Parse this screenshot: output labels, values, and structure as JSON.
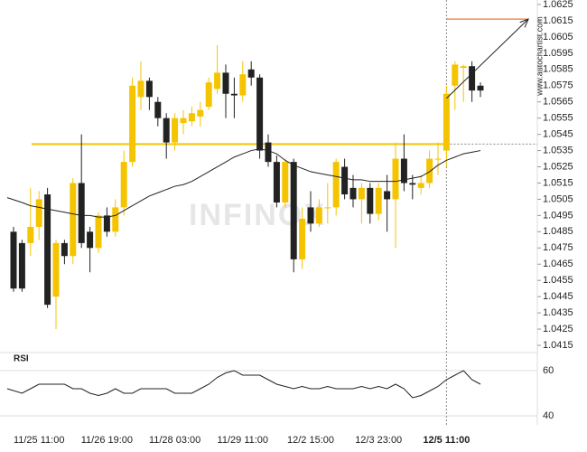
{
  "chart_data": {
    "type": "candlestick",
    "watermark": "INFINOX",
    "source": "www.autochartist.com",
    "categories": [
      null,
      null,
      null,
      "11/25 11:00",
      null,
      null,
      null,
      null,
      null,
      null,
      null,
      "11/26 19:00",
      null,
      null,
      null,
      null,
      null,
      null,
      null,
      "11/28 03:00",
      null,
      null,
      null,
      null,
      null,
      null,
      null,
      "11/29 11:00",
      null,
      null,
      null,
      null,
      null,
      null,
      null,
      "12/2 15:00",
      null,
      null,
      null,
      null,
      null,
      null,
      null,
      "12/3 23:00",
      null,
      null,
      null,
      null,
      null,
      null,
      null,
      "12/5 11:00",
      null,
      null,
      null,
      null
    ],
    "open": [
      1.0485,
      1.0478,
      1.0478,
      1.0488,
      1.0508,
      1.0445,
      1.0478,
      1.047,
      1.0515,
      1.0485,
      1.0475,
      1.0495,
      1.0485,
      1.05,
      1.0528,
      1.0568,
      1.0578,
      1.0565,
      1.0555,
      1.054,
      1.0552,
      1.0553,
      1.0556,
      1.0562,
      1.0573,
      1.0583,
      1.057,
      1.0569,
      1.0585,
      1.058,
      1.054,
      1.0528,
      1.0503,
      1.0528,
      1.0468,
      1.05,
      1.049,
      1.05,
      1.05,
      1.0525,
      1.0512,
      1.0505,
      1.0512,
      1.0496,
      1.051,
      1.0505,
      1.053,
      1.0515,
      1.0512,
      1.0515,
      1.053,
      1.0535,
      1.0575,
      1.0586,
      1.0587,
      1.0575
    ],
    "high": [
      1.0488,
      1.048,
      1.0512,
      1.051,
      1.0512,
      1.048,
      1.048,
      1.0518,
      1.0545,
      1.0488,
      1.0497,
      1.05,
      1.0505,
      1.0535,
      1.058,
      1.059,
      1.058,
      1.0568,
      1.0558,
      1.0558,
      1.056,
      1.0562,
      1.0565,
      1.058,
      1.06,
      1.0588,
      1.058,
      1.059,
      1.059,
      1.0582,
      1.0545,
      1.0532,
      1.053,
      1.053,
      1.05,
      1.051,
      1.0505,
      1.0515,
      1.053,
      1.053,
      1.052,
      1.0515,
      1.0515,
      1.0515,
      1.052,
      1.054,
      1.0545,
      1.052,
      1.052,
      1.0535,
      1.054,
      1.0575,
      1.059,
      1.0588,
      1.059,
      1.0577
    ],
    "low": [
      1.0448,
      1.0448,
      1.047,
      1.048,
      1.0438,
      1.0425,
      1.0465,
      1.0465,
      1.0475,
      1.046,
      1.0472,
      1.0482,
      1.0482,
      1.0495,
      1.0525,
      1.056,
      1.056,
      1.055,
      1.053,
      1.0535,
      1.0545,
      1.055,
      1.055,
      1.056,
      1.057,
      1.0555,
      1.0555,
      1.0565,
      1.0575,
      1.053,
      1.0525,
      1.05,
      1.05,
      1.046,
      1.0462,
      1.0485,
      1.0488,
      1.049,
      1.0495,
      1.0505,
      1.05,
      1.049,
      1.049,
      1.0492,
      1.0485,
      1.0475,
      1.051,
      1.0505,
      1.0508,
      1.0512,
      1.052,
      1.0525,
      1.056,
      1.0565,
      1.0565,
      1.0568
    ],
    "close": [
      1.045,
      1.045,
      1.0488,
      1.0505,
      1.044,
      1.0478,
      1.047,
      1.0515,
      1.0478,
      1.0475,
      1.0495,
      1.0485,
      1.05,
      1.0528,
      1.0575,
      1.0578,
      1.0568,
      1.0555,
      1.054,
      1.0555,
      1.0555,
      1.0558,
      1.056,
      1.0577,
      1.0583,
      1.057,
      1.0569,
      1.0582,
      1.058,
      1.0535,
      1.0528,
      1.0503,
      1.0528,
      1.0468,
      1.0493,
      1.049,
      1.05,
      1.05,
      1.0528,
      1.0508,
      1.0505,
      1.0512,
      1.0496,
      1.0512,
      1.0505,
      1.053,
      1.0515,
      1.0514,
      1.0515,
      1.053,
      1.053,
      1.057,
      1.0588,
      1.0587,
      1.0572,
      1.0572
    ],
    "up_color": "#f5c400",
    "down_color": "#222222",
    "moving_average": {
      "color": "#222222",
      "values": [
        1.0506,
        1.0503,
        1.0501,
        1.05,
        1.0499,
        1.0498,
        1.0497,
        1.0496,
        1.0495,
        1.0495,
        1.0494,
        1.0494,
        1.0495,
        1.0498,
        1.0501,
        1.0504,
        1.0507,
        1.0509,
        1.0511,
        1.0513,
        1.0514,
        1.0516,
        1.0519,
        1.0522,
        1.0525,
        1.0528,
        1.0531,
        1.0533,
        1.0535,
        1.0536,
        1.0535,
        1.0533,
        1.0529,
        1.0526,
        1.0524,
        1.0522,
        1.0521,
        1.052,
        1.0519,
        1.0518,
        1.0517,
        1.0517,
        1.0516,
        1.0516,
        1.0516,
        1.0516,
        1.0517,
        1.0518,
        1.0519,
        1.0522,
        1.0526,
        1.0529,
        1.0531,
        1.0533,
        1.0534,
        1.0535
      ]
    },
    "support_level": {
      "value": 1.0539,
      "color": "#f5c400"
    },
    "target_level": {
      "value": 1.0616,
      "color": "#e07b39"
    },
    "ylim": [
      1.0408,
      1.0628
    ],
    "yticks": [
      1.0415,
      1.0425,
      1.0435,
      1.0445,
      1.0455,
      1.0465,
      1.0475,
      1.0485,
      1.0495,
      1.0505,
      1.0515,
      1.0525,
      1.0535,
      1.0545,
      1.0555,
      1.0565,
      1.0575,
      1.0585,
      1.0595,
      1.0605,
      1.0615,
      1.0625
    ],
    "rsi": {
      "label": "RSI",
      "ylim": [
        36,
        66
      ],
      "yticks": [
        40,
        60
      ],
      "values": [
        52,
        50,
        52,
        54,
        54,
        54,
        54,
        52,
        52,
        50,
        49,
        50,
        52,
        50,
        50,
        52,
        52,
        52,
        52,
        50,
        50,
        50,
        52,
        54,
        57,
        59,
        60,
        58,
        58,
        58,
        56,
        54,
        53,
        52,
        53,
        52,
        52,
        53,
        52,
        52,
        52,
        53,
        52,
        53,
        52,
        54,
        52,
        48,
        49,
        51,
        53,
        56,
        58,
        60,
        56,
        54
      ]
    }
  }
}
